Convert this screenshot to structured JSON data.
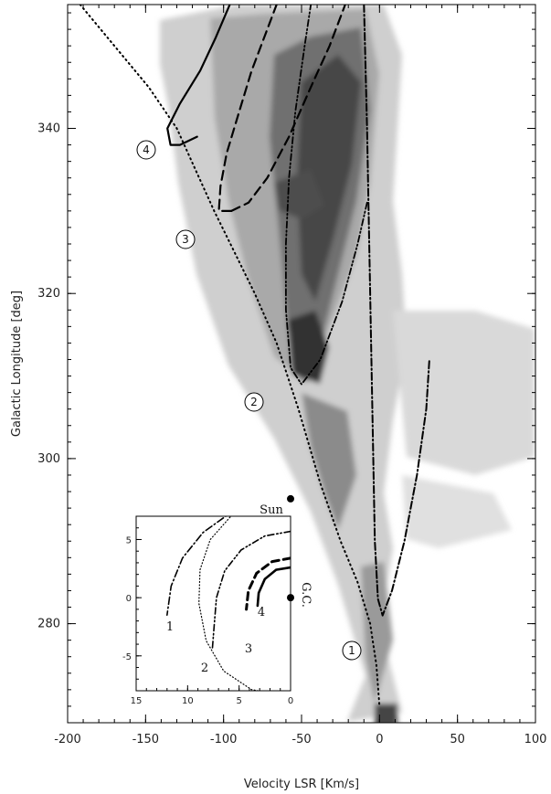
{
  "chart_data": [
    {
      "type": "line",
      "xlabel": "Velocity LSR [Km/s]",
      "ylabel": "Galactic Longitude [deg]",
      "xlim": [
        -200,
        100
      ],
      "ylim": [
        268,
        355
      ],
      "x_ticks": [
        -200,
        -150,
        -100,
        -50,
        0,
        50,
        100
      ],
      "y_ticks": [
        280,
        300,
        320,
        340
      ],
      "background": "grayscale HI longitude-velocity emission map",
      "series": [
        {
          "style": "dotted",
          "points": [
            [
              -192,
              355
            ],
            [
              -170,
              350
            ],
            [
              -148,
              345
            ],
            [
              -130,
              340
            ],
            [
              -118,
              335
            ],
            [
              -106,
              330
            ],
            [
              -93,
              325
            ],
            [
              -80,
              320
            ],
            [
              -66,
              314
            ],
            [
              -52,
              306
            ],
            [
              -38,
              297
            ],
            [
              -25,
              290
            ],
            [
              -14,
              285
            ],
            [
              -6,
              280
            ],
            [
              -2,
              275
            ],
            [
              0,
              270
            ]
          ]
        },
        {
          "style": "dash-dot-dot",
          "points": [
            [
              -8,
              331
            ],
            [
              -14,
              326
            ],
            [
              -24,
              319
            ],
            [
              -38,
              312
            ],
            [
              -50,
              309
            ],
            [
              -57,
              311
            ],
            [
              -60,
              318
            ],
            [
              -60,
              326
            ],
            [
              -58,
              334
            ],
            [
              -54,
              342
            ],
            [
              -48,
              350
            ],
            [
              -44,
              355
            ]
          ]
        },
        {
          "style": "long-dash",
          "points": [
            [
              -95,
              330
            ],
            [
              -103,
              330
            ],
            [
              -102,
              333
            ],
            [
              -98,
              337
            ],
            [
              -90,
              342
            ],
            [
              -82,
              347
            ],
            [
              -72,
              352
            ],
            [
              -66,
              355
            ]
          ]
        },
        {
          "style": "long-dash",
          "points": [
            [
              -95,
              330
            ],
            [
              -84,
              331
            ],
            [
              -72,
              334
            ],
            [
              -58,
              339
            ],
            [
              -44,
              345
            ],
            [
              -32,
              350
            ],
            [
              -22,
              355
            ]
          ]
        },
        {
          "style": "solid",
          "points": [
            [
              -117,
              339
            ],
            [
              -128,
              338
            ],
            [
              -134,
              338
            ],
            [
              -136,
              340
            ],
            [
              -128,
              343
            ],
            [
              -115,
              347
            ],
            [
              -105,
              351
            ],
            [
              -96,
              355
            ]
          ]
        },
        {
          "style": "dash-dot",
          "points": [
            [
              -10,
              355
            ],
            [
              -8,
              340
            ],
            [
              -6,
              320
            ],
            [
              -4,
              300
            ],
            [
              -3,
              290
            ],
            [
              -1,
              283
            ],
            [
              2,
              281
            ],
            [
              8,
              284
            ],
            [
              16,
              290
            ],
            [
              24,
              298
            ],
            [
              30,
              306
            ],
            [
              32,
              312
            ]
          ]
        }
      ],
      "annotations": [
        "1",
        "2",
        "3",
        "4"
      ]
    },
    {
      "type": "line",
      "xlim": [
        15,
        0
      ],
      "ylim": [
        -8,
        7
      ],
      "x_ticks": [
        15,
        10,
        5,
        0
      ],
      "y_ticks": [
        -5,
        0,
        5
      ],
      "labels": [
        "1",
        "2",
        "3",
        "4",
        "Sun",
        "G.C."
      ],
      "points": [
        {
          "label": "Sun",
          "x": 0,
          "y": 8.5
        },
        {
          "label": "G.C.",
          "x": 0,
          "y": 0
        }
      ],
      "series": [
        {
          "label": "1",
          "style": "dash-dot",
          "points": [
            [
              0,
              8.5
            ],
            [
              3,
              8.2
            ],
            [
              6,
              7.2
            ],
            [
              8.5,
              5.6
            ],
            [
              10.5,
              3.4
            ],
            [
              11.6,
              1
            ],
            [
              12,
              -1.5
            ]
          ]
        },
        {
          "label": "2",
          "style": "dotted",
          "points": [
            [
              0,
              8.5
            ],
            [
              3,
              8.1
            ],
            [
              5.8,
              7
            ],
            [
              7.8,
              5
            ],
            [
              8.8,
              2.4
            ],
            [
              8.9,
              -0.5
            ],
            [
              8.2,
              -3.7
            ],
            [
              6.5,
              -6.3
            ],
            [
              3.8,
              -7.9
            ],
            [
              0,
              -8.5
            ]
          ]
        },
        {
          "label": "3",
          "style": "dash-dot-dot",
          "points": [
            [
              0,
              5.7
            ],
            [
              2.5,
              5.3
            ],
            [
              4.8,
              4.1
            ],
            [
              6.4,
              2.3
            ],
            [
              7.2,
              0
            ],
            [
              7.4,
              -2.2
            ],
            [
              7.6,
              -4.4
            ]
          ]
        },
        {
          "label": "4",
          "style": "long-dash",
          "points": [
            [
              0,
              3.4
            ],
            [
              1.8,
              3.1
            ],
            [
              3.3,
              2.1
            ],
            [
              4.1,
              0.6
            ],
            [
              4.3,
              -1
            ]
          ]
        },
        {
          "label": "",
          "style": "solid",
          "points": [
            [
              0,
              2.6
            ],
            [
              1.4,
              2.4
            ],
            [
              2.5,
              1.6
            ],
            [
              3.1,
              0.4
            ],
            [
              3.2,
              -0.7
            ]
          ]
        }
      ]
    }
  ]
}
